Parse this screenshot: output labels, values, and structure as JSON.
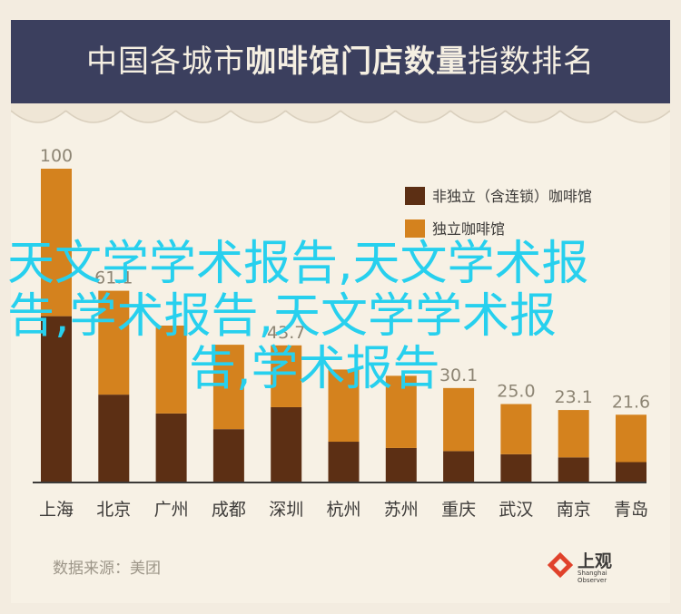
{
  "title_part1": "中国各城市",
  "title_part2": "咖啡馆门店数量",
  "title_part3": "指数排名",
  "legend": [
    {
      "label": "非独立（含连锁）咖啡馆",
      "color": "#5c2f14"
    },
    {
      "label": "独立咖啡馆",
      "color": "#d4821e"
    }
  ],
  "source": "数据来源：美团",
  "logo": {
    "name": "上观",
    "sub": "Shanghai Observer"
  },
  "overlay": {
    "line1": "天文学学术报告,天文学术报",
    "line2": "告,学术报告,天文学学术报",
    "line3": "告,学术报告"
  },
  "chart_data": {
    "type": "bar",
    "stacked": true,
    "title": "中国各城市咖啡馆门店数量指数排名",
    "categories": [
      "上海",
      "北京",
      "广州",
      "成都",
      "深圳",
      "杭州",
      "苏州",
      "重庆",
      "武汉",
      "南京",
      "青岛"
    ],
    "totals": [
      100,
      61.1,
      50.0,
      43.9,
      43.7,
      36.0,
      34.0,
      30.1,
      25.0,
      23.1,
      21.6
    ],
    "total_labels": [
      "100",
      "61.1",
      "",
      "",
      "43.7",
      "",
      "",
      "30.1",
      "25.0",
      "23.1",
      "21.6"
    ],
    "series": [
      {
        "name": "非独立（含连锁）咖啡馆",
        "values": [
          53,
          28,
          22,
          17,
          24,
          13,
          11,
          10,
          9,
          8,
          6.5
        ]
      },
      {
        "name": "独立咖啡馆",
        "values": [
          47,
          33.1,
          28.0,
          26.9,
          19.7,
          23.0,
          23.0,
          20.1,
          16.0,
          15.1,
          15.1
        ]
      }
    ],
    "ylim": [
      0,
      100
    ],
    "grid": false,
    "legend_position": "top-right"
  }
}
